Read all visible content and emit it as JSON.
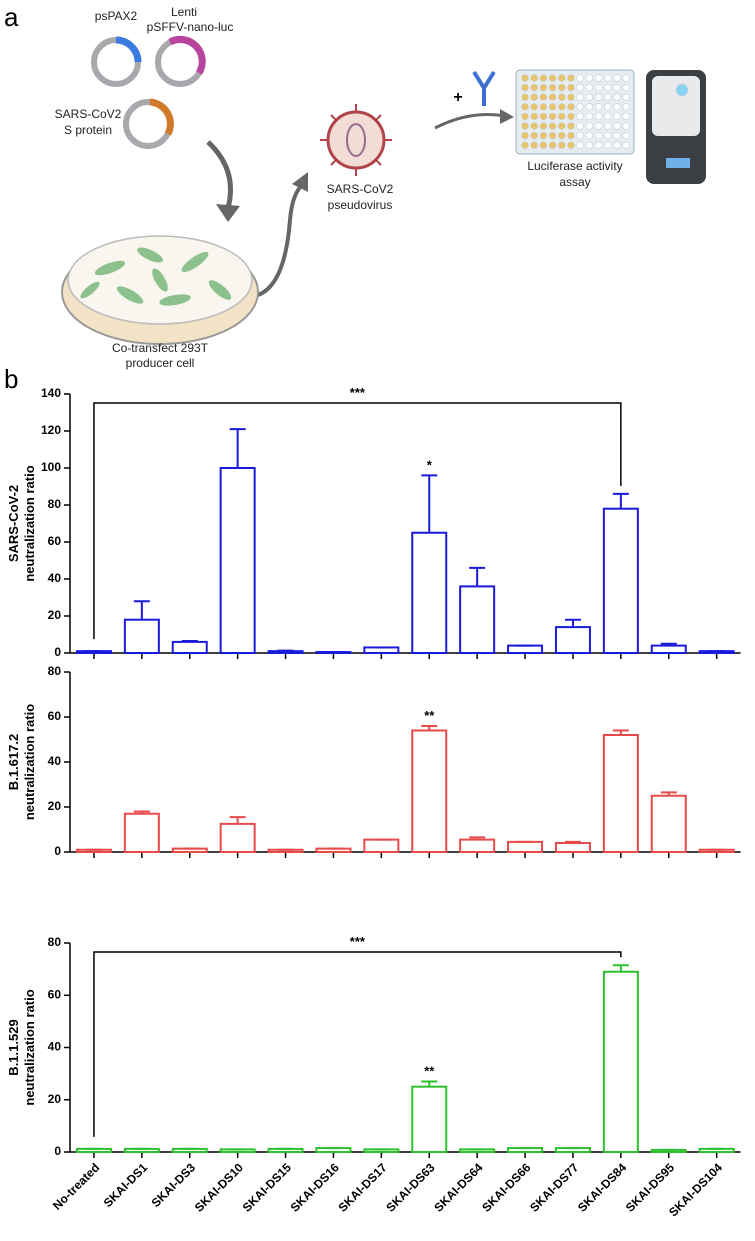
{
  "panel_a": {
    "label": "a",
    "plasmid_1": "psPAX2",
    "plasmid_2": [
      "Lenti",
      "pSFFV-nano-luc"
    ],
    "plasmid_3": [
      "SARS-CoV2",
      "S protein"
    ],
    "cell": [
      "Co-transfect 293T",
      "producer cell"
    ],
    "virus": [
      "SARS-CoV2",
      "pseudovirus"
    ],
    "plus": "+",
    "assay": [
      "Luciferase activity",
      "assay"
    ]
  },
  "panel_b_label": "b",
  "chart_data": [
    {
      "type": "bar",
      "ylabel": [
        "SARS-CoV-2",
        "neutralization ratio"
      ],
      "color": "#1a1adb",
      "values": [
        1,
        18,
        6,
        100,
        1,
        0.5,
        3,
        65,
        36,
        4,
        14,
        78,
        4,
        1
      ],
      "errors": [
        0,
        10,
        0.5,
        21,
        0.3,
        0,
        0,
        31,
        10,
        0,
        4,
        8,
        1,
        0
      ],
      "ylim": [
        0,
        140
      ],
      "yticks": [
        0,
        20,
        40,
        60,
        80,
        100,
        120,
        140
      ],
      "annotations": [
        {
          "text": "*",
          "category": "SKAI-DS63"
        },
        {
          "text": "***",
          "from": "No-treated",
          "to": "SKAI-DS84"
        }
      ]
    },
    {
      "type": "bar",
      "ylabel": [
        "B.1.617.2",
        "neutralization ratio"
      ],
      "color": "#e84a4a",
      "values": [
        1,
        17,
        1.5,
        12.5,
        1,
        1.5,
        5.5,
        54,
        5.5,
        4.5,
        4,
        52,
        25,
        1
      ],
      "errors": [
        0,
        1,
        0,
        3,
        0,
        0,
        0,
        2,
        1,
        0,
        0.5,
        2,
        1.5,
        0
      ],
      "ylim": [
        0,
        80
      ],
      "yticks": [
        0,
        20,
        40,
        60,
        80
      ],
      "annotations": [
        {
          "text": "**",
          "category": "SKAI-DS63"
        }
      ]
    },
    {
      "type": "bar",
      "ylabel": [
        "B.1.1.529",
        "neutralization ratio"
      ],
      "color": "#2ec02e",
      "categories": [
        "No-treated",
        "SKAI-DS1",
        "SKAI-DS3",
        "SKAI-DS10",
        "SKAI-DS15",
        "SKAI-DS16",
        "SKAI-DS17",
        "SKAI-DS63",
        "SKAI-DS64",
        "SKAI-DS66",
        "SKAI-DS77",
        "SKAI-DS84",
        "SKAI-DS95",
        "SKAI-DS104"
      ],
      "values": [
        1.2,
        1.2,
        1.2,
        1,
        1.2,
        1.5,
        1,
        25,
        1,
        1.5,
        1.5,
        69,
        0.8,
        1.2
      ],
      "errors": [
        0,
        0,
        0,
        0,
        0,
        0,
        0,
        2,
        0,
        0,
        0,
        2.5,
        0,
        0
      ],
      "ylim": [
        0,
        80
      ],
      "yticks": [
        0,
        20,
        40,
        60,
        80
      ],
      "annotations": [
        {
          "text": "**",
          "category": "SKAI-DS63"
        },
        {
          "text": "***",
          "from": "No-treated",
          "to": "SKAI-DS84"
        }
      ]
    }
  ]
}
